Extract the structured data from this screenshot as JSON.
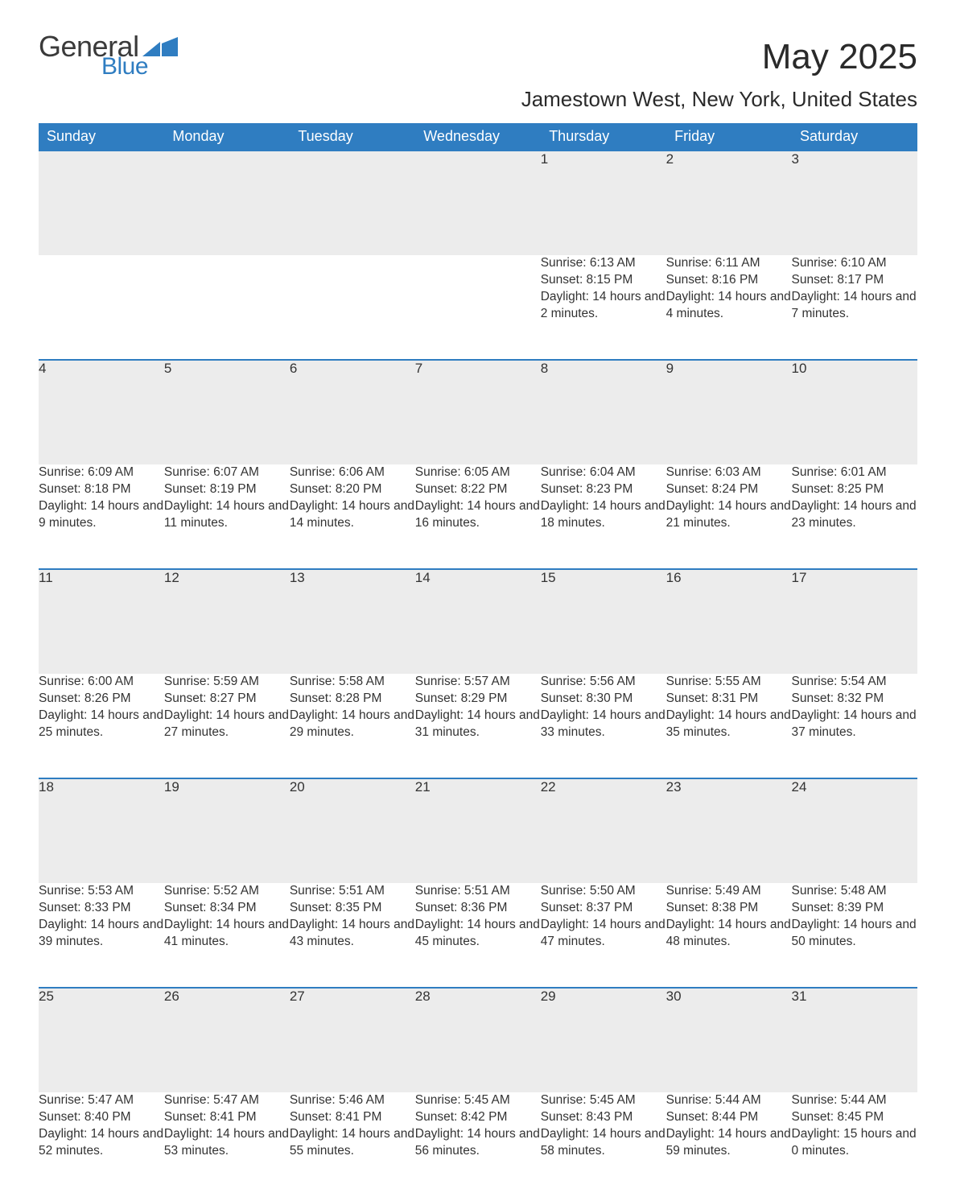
{
  "brand": {
    "word1": "General",
    "word2": "Blue",
    "color": "#2f7dc1"
  },
  "title": "May 2025",
  "location": "Jamestown West, New York, United States",
  "colors": {
    "header_bg": "#2f7dc1",
    "header_text": "#ffffff",
    "daynum_bg": "#ececec",
    "daynum_border": "#2f7dc1",
    "body_text": "#333333",
    "page_bg": "#ffffff"
  },
  "weekdays": [
    "Sunday",
    "Monday",
    "Tuesday",
    "Wednesday",
    "Thursday",
    "Friday",
    "Saturday"
  ],
  "weeks": [
    [
      null,
      null,
      null,
      null,
      {
        "n": "1",
        "sunrise": "6:13 AM",
        "sunset": "8:15 PM",
        "daylight": "14 hours and 2 minutes."
      },
      {
        "n": "2",
        "sunrise": "6:11 AM",
        "sunset": "8:16 PM",
        "daylight": "14 hours and 4 minutes."
      },
      {
        "n": "3",
        "sunrise": "6:10 AM",
        "sunset": "8:17 PM",
        "daylight": "14 hours and 7 minutes."
      }
    ],
    [
      {
        "n": "4",
        "sunrise": "6:09 AM",
        "sunset": "8:18 PM",
        "daylight": "14 hours and 9 minutes."
      },
      {
        "n": "5",
        "sunrise": "6:07 AM",
        "sunset": "8:19 PM",
        "daylight": "14 hours and 11 minutes."
      },
      {
        "n": "6",
        "sunrise": "6:06 AM",
        "sunset": "8:20 PM",
        "daylight": "14 hours and 14 minutes."
      },
      {
        "n": "7",
        "sunrise": "6:05 AM",
        "sunset": "8:22 PM",
        "daylight": "14 hours and 16 minutes."
      },
      {
        "n": "8",
        "sunrise": "6:04 AM",
        "sunset": "8:23 PM",
        "daylight": "14 hours and 18 minutes."
      },
      {
        "n": "9",
        "sunrise": "6:03 AM",
        "sunset": "8:24 PM",
        "daylight": "14 hours and 21 minutes."
      },
      {
        "n": "10",
        "sunrise": "6:01 AM",
        "sunset": "8:25 PM",
        "daylight": "14 hours and 23 minutes."
      }
    ],
    [
      {
        "n": "11",
        "sunrise": "6:00 AM",
        "sunset": "8:26 PM",
        "daylight": "14 hours and 25 minutes."
      },
      {
        "n": "12",
        "sunrise": "5:59 AM",
        "sunset": "8:27 PM",
        "daylight": "14 hours and 27 minutes."
      },
      {
        "n": "13",
        "sunrise": "5:58 AM",
        "sunset": "8:28 PM",
        "daylight": "14 hours and 29 minutes."
      },
      {
        "n": "14",
        "sunrise": "5:57 AM",
        "sunset": "8:29 PM",
        "daylight": "14 hours and 31 minutes."
      },
      {
        "n": "15",
        "sunrise": "5:56 AM",
        "sunset": "8:30 PM",
        "daylight": "14 hours and 33 minutes."
      },
      {
        "n": "16",
        "sunrise": "5:55 AM",
        "sunset": "8:31 PM",
        "daylight": "14 hours and 35 minutes."
      },
      {
        "n": "17",
        "sunrise": "5:54 AM",
        "sunset": "8:32 PM",
        "daylight": "14 hours and 37 minutes."
      }
    ],
    [
      {
        "n": "18",
        "sunrise": "5:53 AM",
        "sunset": "8:33 PM",
        "daylight": "14 hours and 39 minutes."
      },
      {
        "n": "19",
        "sunrise": "5:52 AM",
        "sunset": "8:34 PM",
        "daylight": "14 hours and 41 minutes."
      },
      {
        "n": "20",
        "sunrise": "5:51 AM",
        "sunset": "8:35 PM",
        "daylight": "14 hours and 43 minutes."
      },
      {
        "n": "21",
        "sunrise": "5:51 AM",
        "sunset": "8:36 PM",
        "daylight": "14 hours and 45 minutes."
      },
      {
        "n": "22",
        "sunrise": "5:50 AM",
        "sunset": "8:37 PM",
        "daylight": "14 hours and 47 minutes."
      },
      {
        "n": "23",
        "sunrise": "5:49 AM",
        "sunset": "8:38 PM",
        "daylight": "14 hours and 48 minutes."
      },
      {
        "n": "24",
        "sunrise": "5:48 AM",
        "sunset": "8:39 PM",
        "daylight": "14 hours and 50 minutes."
      }
    ],
    [
      {
        "n": "25",
        "sunrise": "5:47 AM",
        "sunset": "8:40 PM",
        "daylight": "14 hours and 52 minutes."
      },
      {
        "n": "26",
        "sunrise": "5:47 AM",
        "sunset": "8:41 PM",
        "daylight": "14 hours and 53 minutes."
      },
      {
        "n": "27",
        "sunrise": "5:46 AM",
        "sunset": "8:41 PM",
        "daylight": "14 hours and 55 minutes."
      },
      {
        "n": "28",
        "sunrise": "5:45 AM",
        "sunset": "8:42 PM",
        "daylight": "14 hours and 56 minutes."
      },
      {
        "n": "29",
        "sunrise": "5:45 AM",
        "sunset": "8:43 PM",
        "daylight": "14 hours and 58 minutes."
      },
      {
        "n": "30",
        "sunrise": "5:44 AM",
        "sunset": "8:44 PM",
        "daylight": "14 hours and 59 minutes."
      },
      {
        "n": "31",
        "sunrise": "5:44 AM",
        "sunset": "8:45 PM",
        "daylight": "15 hours and 0 minutes."
      }
    ]
  ],
  "row_labels": {
    "sunrise": "Sunrise: ",
    "sunset": "Sunset: ",
    "daylight": "Daylight: "
  }
}
